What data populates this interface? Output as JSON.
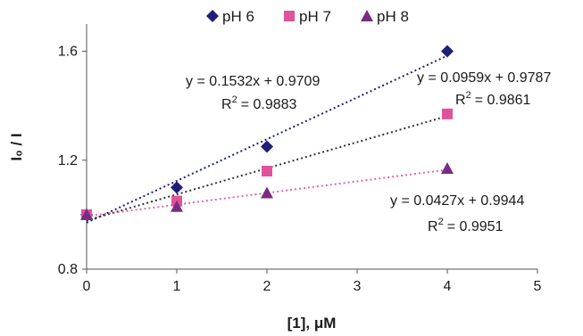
{
  "chart_data": {
    "type": "scatter",
    "xlabel": "[1], μM",
    "ylabel": "I₀ / I",
    "xlim": [
      0,
      5
    ],
    "ylim": [
      0.8,
      1.7
    ],
    "x_ticks": [
      "0",
      "1",
      "2",
      "3",
      "4",
      "5"
    ],
    "y_ticks": [
      "0.8",
      "1.2",
      "1.6"
    ],
    "grid": false,
    "legend_position": "top",
    "series": [
      {
        "name": "pH 6",
        "marker": "diamond",
        "color": "#1f1f7a",
        "x": [
          0,
          1,
          2,
          4
        ],
        "y": [
          1.0,
          1.1,
          1.25,
          1.6
        ],
        "fit": {
          "slope": 0.1532,
          "intercept": 0.9709,
          "color": "#1f1f7a"
        },
        "equation": "y = 0.1532x + 0.9709",
        "r2_label": "R",
        "r2_value": "= 0.9883"
      },
      {
        "name": "pH 7",
        "marker": "square",
        "color": "#e0529c",
        "x": [
          0,
          1,
          2,
          4
        ],
        "y": [
          1.0,
          1.05,
          1.16,
          1.37
        ],
        "fit": {
          "slope": 0.0959,
          "intercept": 0.9787,
          "color": "#333333"
        },
        "equation": "y = 0.0959x + 0.9787",
        "r2_label": "R",
        "r2_value": "= 0.9861"
      },
      {
        "name": "pH 8",
        "marker": "triangle",
        "color": "#7a2b82",
        "x": [
          0,
          1,
          2,
          4
        ],
        "y": [
          1.0,
          1.03,
          1.08,
          1.17
        ],
        "fit": {
          "slope": 0.0427,
          "intercept": 0.9944,
          "color": "#d86aa8"
        },
        "equation": "y = 0.0427x + 0.9944",
        "r2_label": "R",
        "r2_value": "= 0.9951"
      }
    ],
    "r2_superscript": "2"
  }
}
